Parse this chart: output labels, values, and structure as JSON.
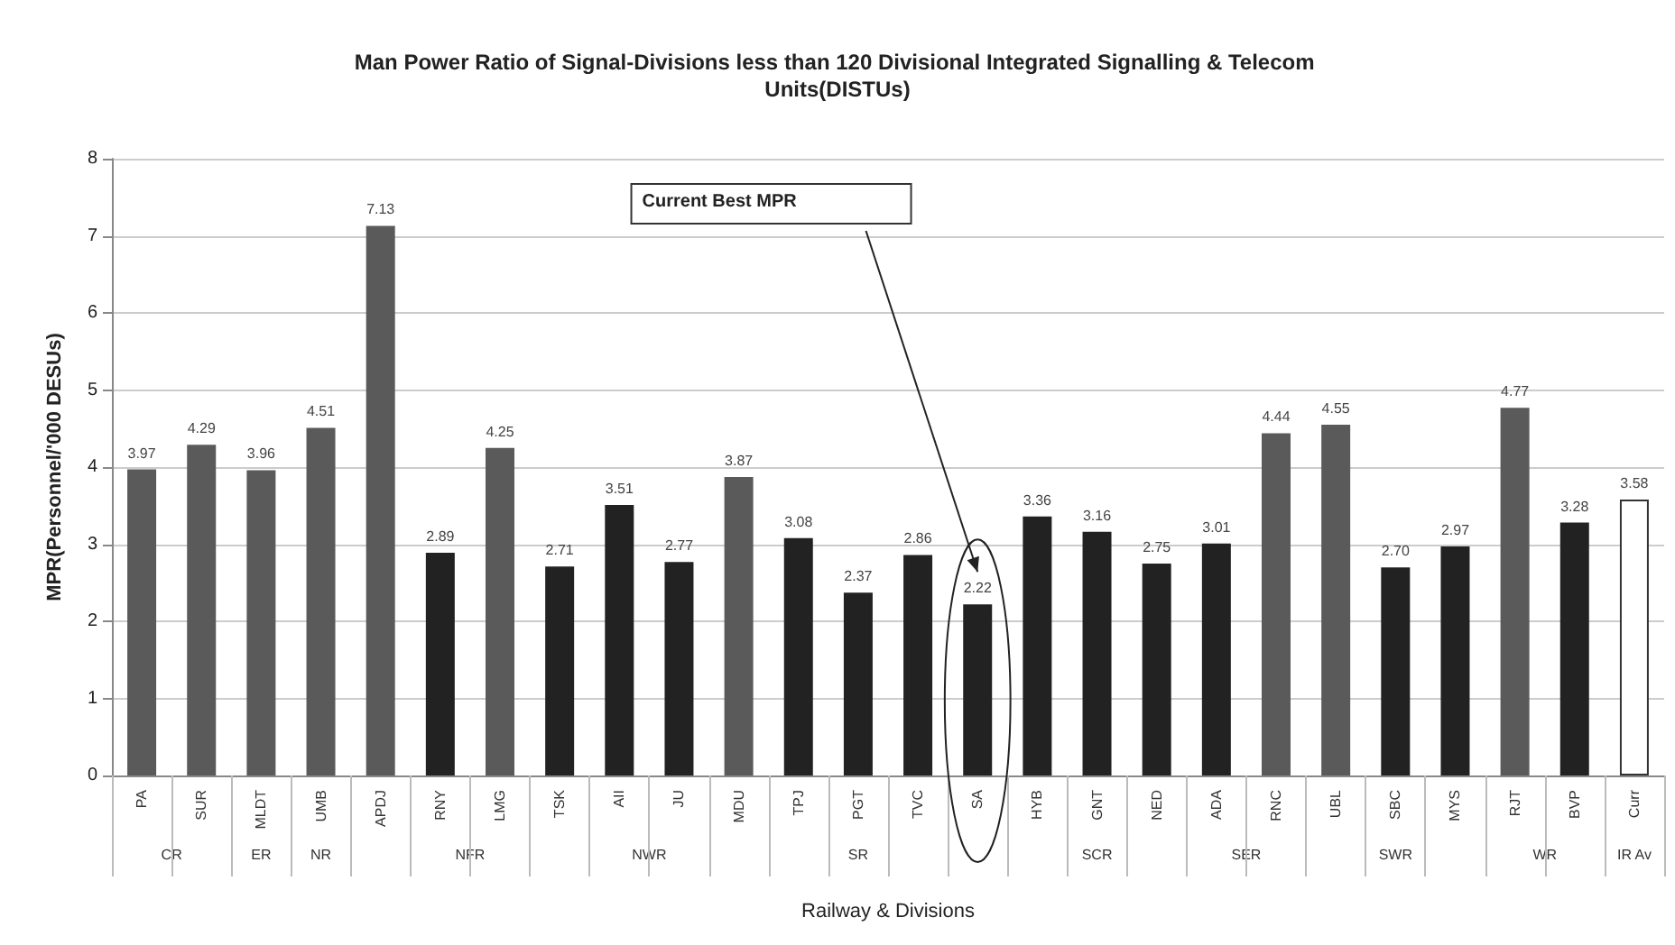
{
  "chart_data": {
    "type": "bar",
    "title": "Man Power Ratio of Signal-Divisions less than 120 Divisional Integrated Signalling & Telecom Units(DISTUs)",
    "xlabel": "Railway & Divisions",
    "ylabel": "MPR(Personnel/'000 DESUs)",
    "categories": [
      "PA",
      "SUR",
      "MLDT",
      "UMB",
      "APDJ",
      "RNY",
      "LMG",
      "TSK",
      "AII",
      "JU",
      "MDU",
      "TPJ",
      "PGT",
      "TVC",
      "SA",
      "HYB",
      "GNT",
      "NED",
      "ADA",
      "RNC",
      "UBL",
      "SBC",
      "MYS",
      "RJT",
      "BVP",
      "Curr"
    ],
    "values": [
      3.97,
      4.29,
      3.96,
      4.51,
      7.13,
      2.89,
      4.25,
      2.71,
      3.51,
      2.77,
      3.87,
      3.08,
      2.37,
      2.86,
      2.22,
      3.36,
      3.16,
      2.75,
      3.01,
      4.44,
      4.55,
      2.7,
      2.97,
      4.77,
      3.28,
      3.58
    ],
    "value_labels": [
      "3.97",
      "4.29",
      "3.96",
      "4.51",
      "7.13",
      "2.89",
      "4.25",
      "2.71",
      "3.51",
      "2.77",
      "3.87",
      "3.08",
      "2.37",
      "2.86",
      "2.22",
      "3.36",
      "3.16",
      "2.75",
      "3.01",
      "4.44",
      "4.55",
      "2.70",
      "2.97",
      "4.77",
      "3.28",
      "3.58"
    ],
    "colors": [
      "#5a5a5a",
      "#5a5a5a",
      "#5a5a5a",
      "#5a5a5a",
      "#5a5a5a",
      "#222222",
      "#5a5a5a",
      "#222222",
      "#222222",
      "#222222",
      "#5a5a5a",
      "#222222",
      "#222222",
      "#222222",
      "#222222",
      "#222222",
      "#222222",
      "#222222",
      "#222222",
      "#5a5a5a",
      "#5a5a5a",
      "#222222",
      "#222222",
      "#5a5a5a",
      "#222222",
      "#ffffff"
    ],
    "ylim": [
      0,
      8
    ],
    "yticks": [
      0,
      1,
      2,
      3,
      4,
      5,
      6,
      7,
      8
    ],
    "grid": "y",
    "annotations": [
      "Current Best MPR",
      "CR",
      "ER",
      "NR",
      "NFR",
      "NWR",
      "SR",
      "SCR",
      "SER",
      "SWR",
      "WR",
      "IR Av"
    ]
  }
}
